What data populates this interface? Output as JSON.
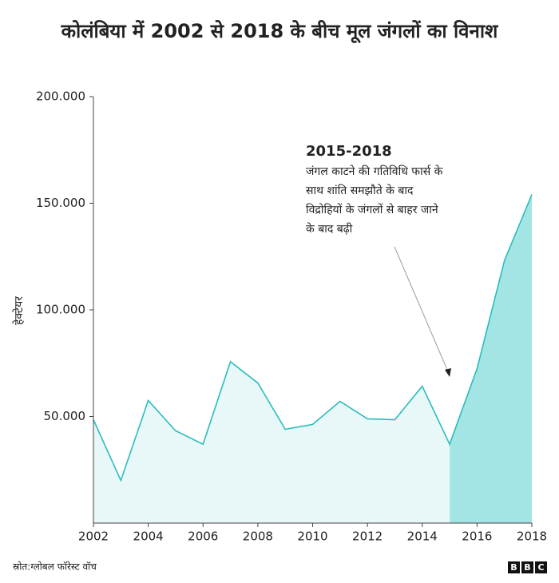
{
  "chart_data": {
    "type": "area",
    "title": "कोलंबिया में 2002 से 2018 के बीच मूल जंगलों का विनाश",
    "y_label": "हेक्टेयर",
    "x": [
      2002,
      2003,
      2004,
      2005,
      2006,
      2007,
      2008,
      2009,
      2010,
      2011,
      2012,
      2013,
      2014,
      2015,
      2016,
      2017,
      2018
    ],
    "series": [
      {
        "color": "#2bbcbc",
        "fill": "#e8f8f8",
        "values": [
          48500,
          20000,
          57500,
          43300,
          37000,
          75700,
          65700,
          44000,
          46300,
          57100,
          48900,
          48500,
          64200,
          37000,
          72400,
          123100,
          154100
        ]
      }
    ],
    "highlight": {
      "from": 2015,
      "to": 2018,
      "color": "#a3e4e4"
    },
    "xlim": [
      2002,
      2018
    ],
    "xticks": [
      2002,
      2004,
      2006,
      2008,
      2010,
      2012,
      2014,
      2016,
      2018
    ],
    "ylim": [
      0,
      200000
    ],
    "yticks": [
      {
        "value": 50000,
        "label": "50.000"
      },
      {
        "value": 100000,
        "label": "100.000"
      },
      {
        "value": 150000,
        "label": "150.000"
      },
      {
        "value": 200000,
        "label": "200.000"
      }
    ],
    "annotation": {
      "title": "2015-2018",
      "lines": [
        "जंगल काटने की गतिविधि फार्स के",
        "साथ शांति समझौते के बाद",
        "विद्रोहियों के जंगलों से बाहर जाने",
        "के बाद बढ़ी"
      ]
    },
    "source": "स्रोत:ग्लोबल फॉरेस्ट वॉच",
    "logo": [
      "B",
      "B",
      "C"
    ]
  }
}
